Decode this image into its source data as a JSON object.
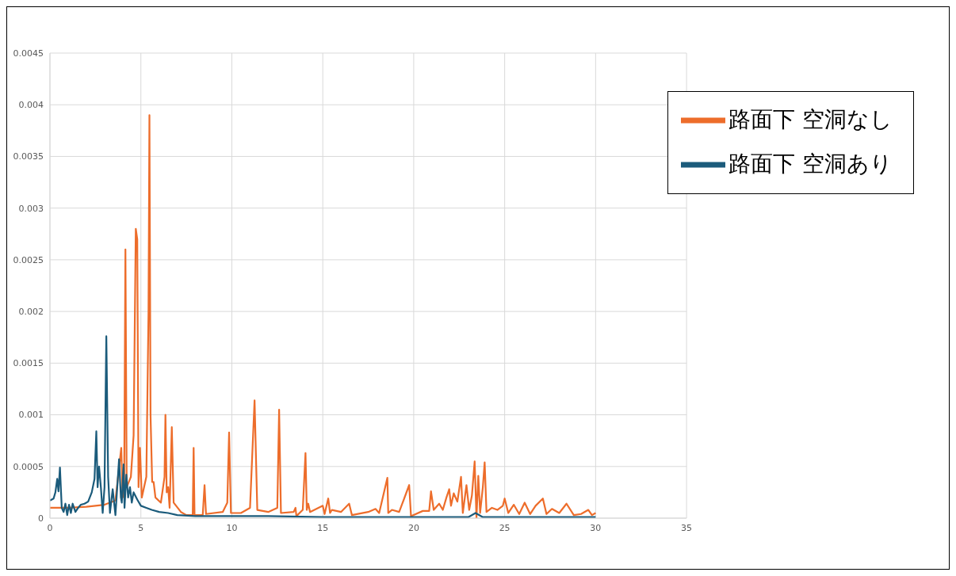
{
  "chart_data": {
    "type": "line",
    "series": [
      {
        "name": "路面下  空洞なし",
        "color": "#ed6d2b",
        "x": [
          0,
          1,
          2,
          3,
          3.6,
          3.92,
          4.0,
          4.08,
          4.15,
          4.22,
          4.45,
          4.6,
          4.72,
          4.8,
          4.87,
          4.95,
          5.05,
          5.3,
          5.42,
          5.47,
          5.53,
          5.62,
          5.7,
          5.8,
          6.1,
          6.3,
          6.35,
          6.42,
          6.5,
          6.58,
          6.7,
          6.8,
          7.2,
          7.5,
          7.85,
          7.9,
          7.95,
          8.4,
          8.5,
          8.58,
          9.5,
          9.75,
          9.85,
          9.95,
          10.5,
          11.0,
          11.25,
          11.4,
          12.0,
          12.5,
          12.6,
          12.7,
          13.4,
          13.5,
          13.55,
          13.9,
          14.05,
          14.12,
          14.2,
          14.3,
          15.0,
          15.1,
          15.3,
          15.4,
          15.5,
          16.0,
          16.45,
          16.6,
          17.5,
          17.9,
          18.1,
          18.55,
          18.6,
          18.8,
          19.2,
          19.75,
          19.85,
          20.5,
          20.85,
          20.95,
          21.1,
          21.4,
          21.6,
          21.8,
          21.95,
          22.05,
          22.2,
          22.4,
          22.6,
          22.7,
          22.9,
          23.05,
          23.2,
          23.35,
          23.45,
          23.55,
          23.65,
          23.8,
          23.9,
          24.0,
          24.3,
          24.6,
          24.9,
          25.0,
          25.2,
          25.5,
          25.8,
          26.1,
          26.4,
          26.7,
          27.1,
          27.3,
          27.6,
          28.0,
          28.4,
          28.8,
          29.2,
          29.6,
          29.8,
          30
        ],
        "values": [
          0.0001,
          0.0001,
          0.00011,
          0.00013,
          0.00017,
          0.00068,
          0.0002,
          0.0003,
          0.0026,
          0.0003,
          0.0004,
          0.0008,
          0.0028,
          0.0027,
          0.0003,
          0.00068,
          0.0002,
          0.0004,
          0.002,
          0.0039,
          0.001,
          0.00035,
          0.00035,
          0.0002,
          0.00015,
          0.0004,
          0.001,
          0.00025,
          0.0003,
          0.0001,
          0.00088,
          0.00015,
          6e-05,
          3e-05,
          3e-05,
          0.00068,
          3e-05,
          3e-05,
          0.00032,
          4e-05,
          6e-05,
          0.00015,
          0.00083,
          5e-05,
          5e-05,
          0.0001,
          0.00114,
          8e-05,
          6e-05,
          0.0001,
          0.00105,
          5e-05,
          6e-05,
          0.0001,
          2e-05,
          8e-05,
          0.00063,
          8e-05,
          0.00014,
          6e-05,
          0.00012,
          4e-05,
          0.00019,
          5e-05,
          8e-05,
          6e-05,
          0.00014,
          3e-05,
          6e-05,
          9e-05,
          5e-05,
          0.00039,
          5e-05,
          8e-05,
          6e-05,
          0.00032,
          2e-05,
          7e-05,
          7e-05,
          0.00026,
          8e-05,
          0.00014,
          8e-05,
          0.0002,
          0.00028,
          0.00012,
          0.00024,
          0.00016,
          0.0004,
          5e-05,
          0.00032,
          8e-05,
          0.00022,
          0.00055,
          0.0,
          0.00041,
          5e-05,
          0.0003,
          0.00054,
          6e-05,
          0.0001,
          8e-05,
          0.00012,
          0.00019,
          5e-05,
          0.00013,
          4e-05,
          0.00015,
          4e-05,
          0.00012,
          0.00019,
          4e-05,
          9e-05,
          5e-05,
          0.00014,
          3e-05,
          4e-05,
          8e-05,
          3e-05,
          5e-05
        ]
      },
      {
        "name": "路面下  空洞あり",
        "color": "#1b5b7b",
        "x": [
          0,
          0.2,
          0.3,
          0.4,
          0.47,
          0.55,
          0.65,
          0.75,
          0.85,
          0.95,
          1.05,
          1.15,
          1.25,
          1.4,
          1.55,
          1.7,
          1.9,
          2.1,
          2.3,
          2.45,
          2.55,
          2.62,
          2.7,
          2.8,
          2.9,
          3.0,
          3.1,
          3.2,
          3.3,
          3.45,
          3.6,
          3.8,
          3.9,
          3.95,
          4.05,
          4.1,
          4.2,
          4.3,
          4.4,
          4.5,
          4.6,
          4.8,
          5.0,
          5.3,
          5.6,
          6.0,
          6.5,
          7.0,
          8.0,
          10.0,
          12.0,
          15.0,
          20.0,
          23.0,
          23.4,
          23.8,
          26.0,
          30
        ],
        "values": [
          0.00017,
          0.00019,
          0.00025,
          0.00038,
          0.00026,
          0.00049,
          0.0001,
          6e-05,
          0.00014,
          3e-05,
          0.00013,
          5e-05,
          0.00014,
          6e-05,
          0.0001,
          0.00013,
          0.00014,
          0.00016,
          0.00025,
          0.00038,
          0.00084,
          0.0003,
          0.0005,
          0.0003,
          5e-05,
          0.0003,
          0.00176,
          0.0004,
          5e-05,
          0.00028,
          3e-05,
          0.00057,
          0.0002,
          0.00015,
          0.00052,
          0.0001,
          0.00042,
          0.0002,
          0.0003,
          0.00015,
          0.00025,
          0.00018,
          0.00012,
          0.0001,
          8e-05,
          6e-05,
          5e-05,
          3e-05,
          2e-05,
          2e-05,
          2e-05,
          1e-05,
          1e-05,
          1e-05,
          5e-05,
          1e-05,
          1e-05,
          1e-05
        ]
      }
    ],
    "xlim": [
      0,
      35
    ],
    "xticks": [
      0,
      5,
      10,
      15,
      20,
      25,
      30,
      35
    ],
    "ylim": [
      0,
      0.0045
    ],
    "yticks": [
      0,
      0.0005,
      0.001,
      0.0015,
      0.002,
      0.0025,
      0.003,
      0.0035,
      0.004,
      0.0045
    ],
    "grid": true,
    "legend": "top right",
    "marker": "none",
    "line_style": "solid"
  }
}
